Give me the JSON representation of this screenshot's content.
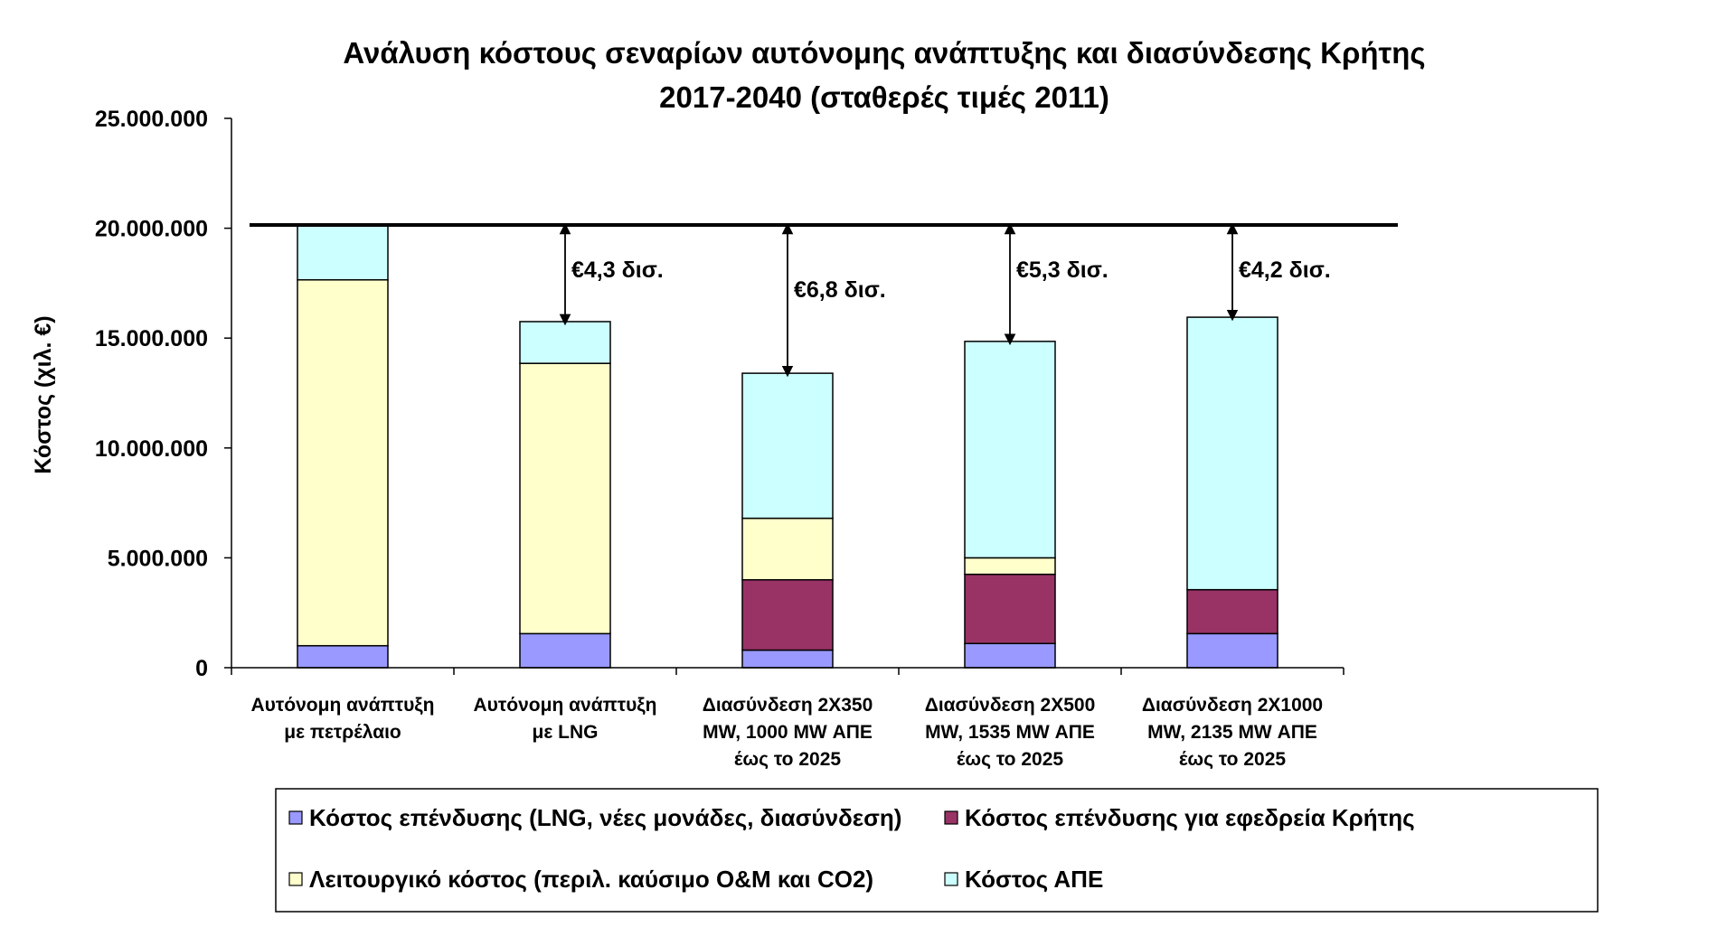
{
  "chart_data": {
    "type": "bar",
    "stacked": true,
    "title_lines": [
      "Ανάλυση κόστους σεναρίων αυτόνομης ανάπτυξης και διασύνδεσης Κρήτης",
      "2017-2040 (σταθερές τιμές 2011)"
    ],
    "ylabel": "Κόστος (χιλ. €)",
    "xlabel": "",
    "ylim": [
      0,
      25000000
    ],
    "yticks": [
      0,
      5000000,
      10000000,
      15000000,
      20000000,
      25000000
    ],
    "ytick_labels": [
      "0",
      "5.000.000",
      "10.000.000",
      "15.000.000",
      "20.000.000",
      "25.000.000"
    ],
    "grid": false,
    "legend_position": "bottom",
    "categories": [
      [
        "Αυτόνομη ανάπτυξη",
        "με πετρέλαιο"
      ],
      [
        "Αυτόνομη ανάπτυξη",
        "με LNG"
      ],
      [
        "Διασύνδεση 2X350",
        "MW, 1000 MW ΑΠΕ",
        "έως το 2025"
      ],
      [
        "Διασύνδεση 2X500",
        "MW, 1535 MW ΑΠΕ",
        "έως το 2025"
      ],
      [
        "Διασύνδεση 2X1000",
        "MW, 2135 MW ΑΠΕ",
        "έως το 2025"
      ]
    ],
    "series": [
      {
        "name": "Κόστος επένδυσης (LNG, νέες μονάδες, διασύνδεση)",
        "color": "#9999ff",
        "values": [
          1000000,
          1550000,
          800000,
          1100000,
          1550000
        ]
      },
      {
        "name": "Κόστος επένδυσης για εφεδρεία Κρήτης",
        "color": "#993366",
        "values": [
          0,
          0,
          3200000,
          3150000,
          2000000
        ]
      },
      {
        "name": "Λειτουργικό κόστος (περιλ. καύσιμο O&M και CO2)",
        "color": "#ffffcc",
        "values": [
          16650000,
          12300000,
          2800000,
          750000,
          0
        ]
      },
      {
        "name": "Κόστος ΑΠΕ",
        "color": "#ccffff",
        "values": [
          2500000,
          1900000,
          6600000,
          9850000,
          12400000
        ]
      }
    ],
    "reference_line": 20150000,
    "annotations": [
      {
        "category_index": 1,
        "label": "€4,3 δισ."
      },
      {
        "category_index": 2,
        "label": "€6,8 δισ."
      },
      {
        "category_index": 3,
        "label": "€5,3 δισ."
      },
      {
        "category_index": 4,
        "label": "€4,2 δισ."
      }
    ]
  }
}
